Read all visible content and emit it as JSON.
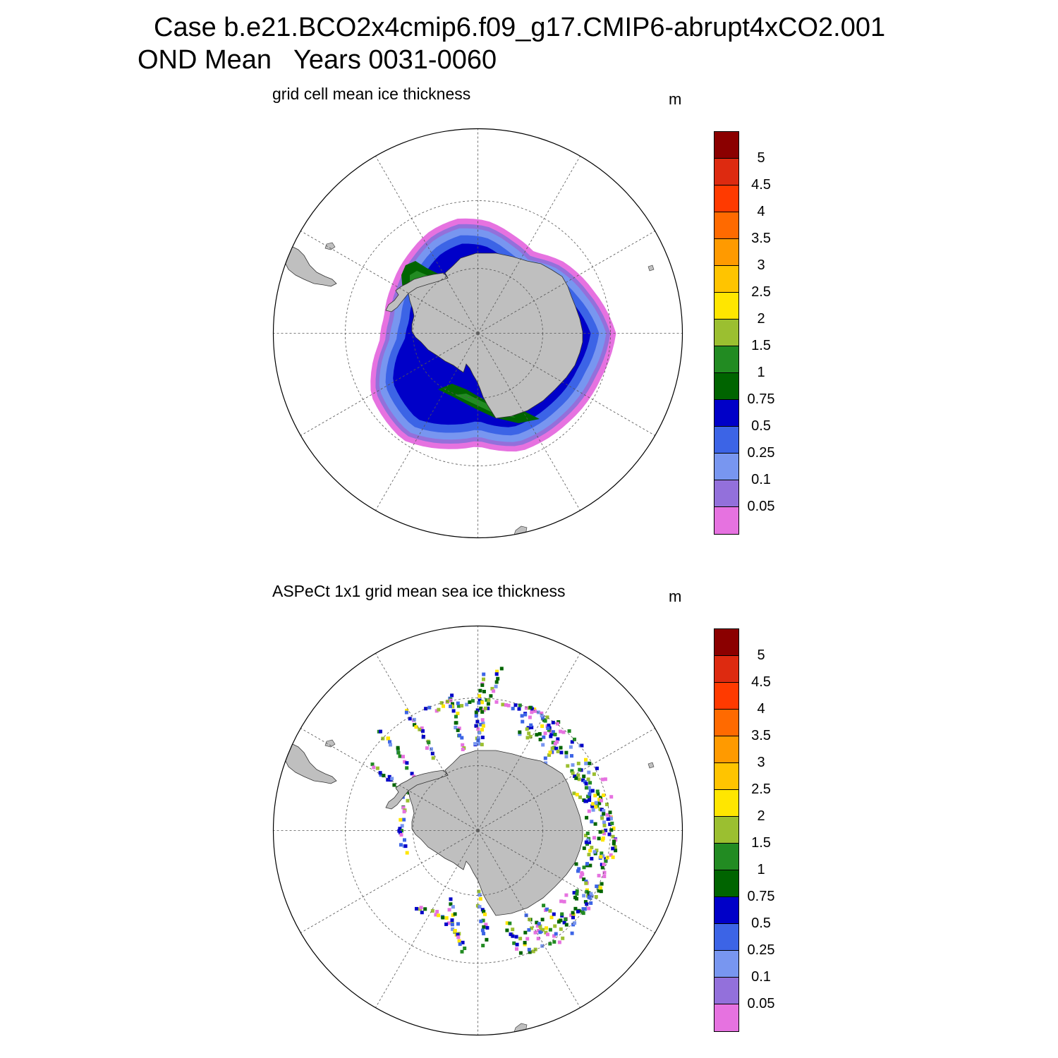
{
  "header": {
    "case_line": "Case b.e21.BCO2x4cmip6.f09_g17.CMIP6-abrupt4xCO2.001",
    "period_line": "OND Mean   Years 0031-0060"
  },
  "panels": [
    {
      "title": "grid cell mean ice thickness",
      "units": "m",
      "kind": "model"
    },
    {
      "title": "ASPeCt 1x1 grid mean sea ice thickness",
      "units": "m",
      "kind": "obs"
    }
  ],
  "colorbar": {
    "labels": [
      "5",
      "4.5",
      "4",
      "3.5",
      "3",
      "2.5",
      "2",
      "1.5",
      "1",
      "0.75",
      "0.5",
      "0.25",
      "0.1",
      "0.05"
    ],
    "colors": [
      "#8b0000",
      "#dd2a10",
      "#ff3a00",
      "#ff6a00",
      "#ff9a00",
      "#ffc400",
      "#ffe600",
      "#9bbf30",
      "#228b22",
      "#006400",
      "#0000c8",
      "#3c64e6",
      "#7896f0",
      "#9370db",
      "#e672e0"
    ]
  },
  "colors": {
    "land": "#bfbfbf",
    "coast": "#333333",
    "grid": "#555555"
  }
}
